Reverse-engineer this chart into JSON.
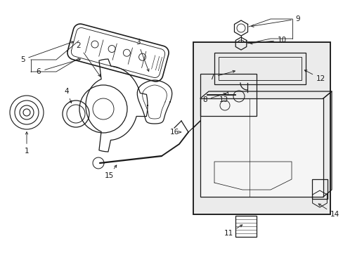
{
  "bg_color": "#ffffff",
  "line_color": "#1a1a1a",
  "box_fill": "#e8e8e8",
  "lw": 0.9,
  "figsize": [
    4.89,
    3.6
  ],
  "dpi": 100
}
